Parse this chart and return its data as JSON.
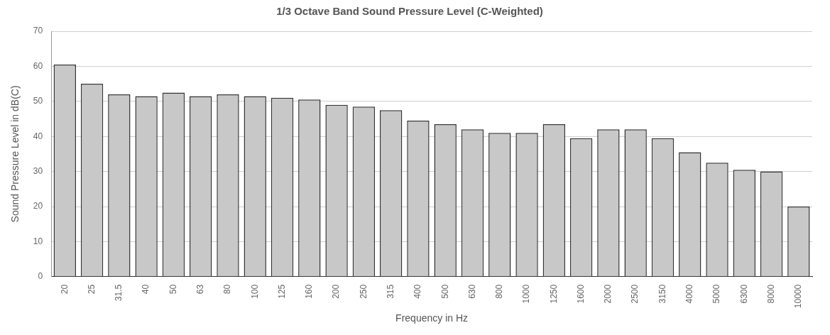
{
  "chart_data": {
    "type": "bar",
    "title": "1/3 Octave Band Sound Pressure Level (C-Weighted)",
    "xlabel": "Frequency in Hz",
    "ylabel": "Sound Pressure Level in dB(C)",
    "categories": [
      "20",
      "25",
      "31.5",
      "40",
      "50",
      "63",
      "80",
      "100",
      "125",
      "160",
      "200",
      "250",
      "315",
      "400",
      "500",
      "630",
      "800",
      "1000",
      "1250",
      "1600",
      "2000",
      "2500",
      "3150",
      "4000",
      "5000",
      "6300",
      "8000",
      "10000"
    ],
    "values": [
      60.5,
      55,
      52,
      51.5,
      52.5,
      51.5,
      52,
      51.5,
      51,
      50.5,
      49,
      48.5,
      47.5,
      44.5,
      43.5,
      42,
      41,
      41,
      43.5,
      39.5,
      42,
      42,
      39.5,
      35.5,
      32.5,
      30.5,
      30,
      20
    ],
    "color": "#c8c8c8",
    "ylim": [
      0,
      70
    ],
    "yticks": [
      0,
      10,
      20,
      30,
      40,
      50,
      60,
      70
    ],
    "grid": "y"
  }
}
